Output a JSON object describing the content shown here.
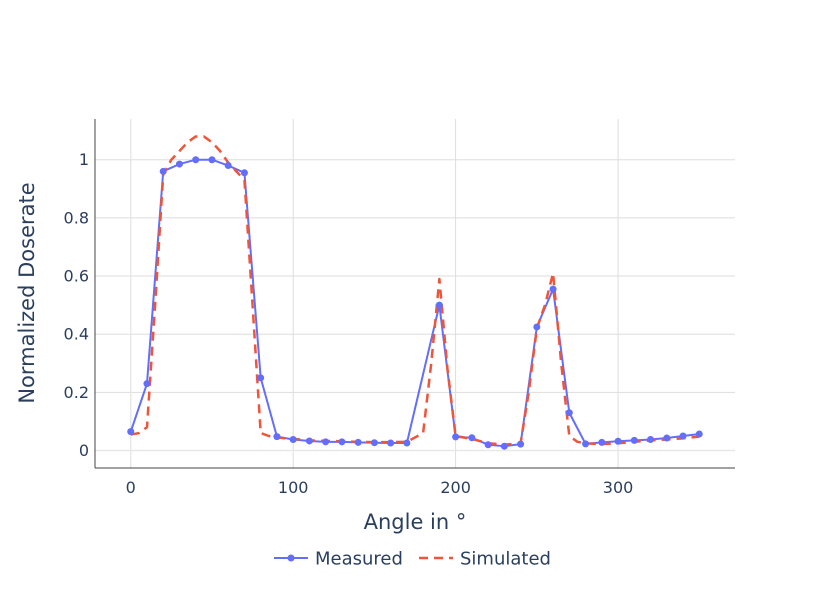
{
  "chart_data": {
    "type": "line",
    "xlabel": "Angle in °",
    "ylabel": "Normalized Doserate",
    "xlim": [
      -22,
      372
    ],
    "ylim": [
      -0.06,
      1.14
    ],
    "x_ticks": [
      0,
      100,
      200,
      300
    ],
    "y_ticks": [
      0,
      0.2,
      0.4,
      0.6,
      0.8,
      1
    ],
    "x_tick_labels": [
      "0",
      "100",
      "200",
      "300"
    ],
    "y_tick_labels": [
      "0",
      "0.2",
      "0.4",
      "0.6",
      "0.8",
      "1"
    ],
    "grid": true,
    "legend_position": "bottom-center",
    "series": [
      {
        "name": "Measured",
        "color": "#636efa",
        "style": "solid-markers",
        "x": [
          0,
          10,
          20,
          30,
          40,
          50,
          60,
          70,
          80,
          90,
          100,
          110,
          120,
          130,
          140,
          150,
          160,
          170,
          190,
          200,
          210,
          220,
          230,
          240,
          250,
          260,
          270,
          280,
          290,
          300,
          310,
          320,
          330,
          340,
          350
        ],
        "y": [
          0.065,
          0.23,
          0.96,
          0.985,
          1.0,
          1.0,
          0.98,
          0.955,
          0.25,
          0.048,
          0.038,
          0.033,
          0.03,
          0.03,
          0.028,
          0.027,
          0.026,
          0.026,
          0.5,
          0.047,
          0.044,
          0.02,
          0.015,
          0.022,
          0.425,
          0.555,
          0.13,
          0.023,
          0.028,
          0.032,
          0.035,
          0.038,
          0.043,
          0.05,
          0.057
        ]
      },
      {
        "name": "Simulated",
        "color": "#ef553b",
        "style": "dash",
        "x": [
          0,
          5,
          10,
          15,
          20,
          25,
          30,
          35,
          40,
          45,
          50,
          55,
          60,
          65,
          70,
          75,
          80,
          85,
          90,
          100,
          110,
          120,
          130,
          140,
          150,
          160,
          170,
          175,
          180,
          185,
          190,
          195,
          200,
          210,
          220,
          230,
          240,
          245,
          250,
          255,
          260,
          265,
          270,
          275,
          280,
          290,
          300,
          310,
          320,
          330,
          340,
          350
        ],
        "y": [
          0.055,
          0.06,
          0.08,
          0.5,
          0.95,
          1.0,
          1.03,
          1.06,
          1.08,
          1.08,
          1.06,
          1.03,
          0.99,
          0.96,
          0.93,
          0.5,
          0.06,
          0.05,
          0.045,
          0.04,
          0.035,
          0.033,
          0.032,
          0.03,
          0.029,
          0.029,
          0.03,
          0.045,
          0.06,
          0.3,
          0.59,
          0.28,
          0.05,
          0.04,
          0.025,
          0.02,
          0.025,
          0.2,
          0.42,
          0.5,
          0.61,
          0.3,
          0.05,
          0.03,
          0.025,
          0.022,
          0.025,
          0.03,
          0.035,
          0.038,
          0.042,
          0.048
        ]
      }
    ]
  }
}
